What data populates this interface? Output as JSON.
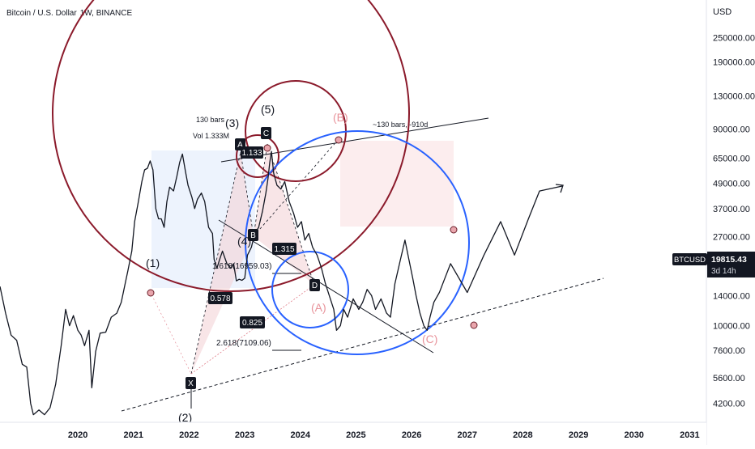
{
  "header": {
    "symbol_title": "Bitcoin / U.S. Dollar",
    "interval": "1W",
    "exchange": "BINANCE"
  },
  "price_axis": {
    "currency": "USD",
    "ticks": [
      "250000.00",
      "190000.00",
      "130000.00",
      "90000.00",
      "65000.00",
      "49000.00",
      "37000.00",
      "27000.00",
      "14000.00",
      "10000.00",
      "7600.00",
      "5600.00",
      "4200.00"
    ]
  },
  "price_tag": {
    "ticker": "BTCUSD",
    "price": "19815.43",
    "countdown": "3d 14h"
  },
  "colors": {
    "price_line": "#131722",
    "dark_red_circle": "#8b1a2b",
    "blue_circle": "#2962ff",
    "pink_label": "#e8939b",
    "tag_bg": "#131722"
  },
  "chart_data": {
    "type": "line",
    "title": "Bitcoin / U.S. Dollar, 1W, BINANCE",
    "x_ticks": [
      "2020",
      "2021",
      "2022",
      "2023",
      "2024",
      "2025",
      "2026",
      "2027",
      "2028",
      "2029",
      "2030",
      "2031"
    ],
    "y_scale": "log",
    "y_ticks": [
      250000,
      190000,
      130000,
      90000,
      65000,
      49000,
      37000,
      27000,
      14000,
      10000,
      7600,
      5600,
      4200
    ],
    "y_range": [
      3400,
      380000
    ],
    "x_range": [
      2018.6,
      2031.3
    ],
    "series": [
      {
        "points": [
          [
            2018.6,
            15500
          ],
          [
            2018.7,
            11500
          ],
          [
            2018.8,
            9000
          ],
          [
            2018.9,
            8500
          ],
          [
            2019.0,
            6500
          ],
          [
            2019.08,
            6300
          ],
          [
            2019.15,
            4200
          ],
          [
            2019.2,
            3700
          ],
          [
            2019.3,
            3900
          ],
          [
            2019.4,
            3700
          ],
          [
            2019.5,
            4000
          ],
          [
            2019.6,
            5200
          ],
          [
            2019.7,
            8000
          ],
          [
            2019.78,
            12000
          ],
          [
            2019.85,
            10000
          ],
          [
            2019.92,
            11200
          ],
          [
            2020.0,
            9500
          ],
          [
            2020.06,
            9000
          ],
          [
            2020.12,
            8000
          ],
          [
            2020.2,
            9500
          ],
          [
            2020.25,
            5000
          ],
          [
            2020.32,
            7500
          ],
          [
            2020.4,
            9200
          ],
          [
            2020.5,
            9300
          ],
          [
            2020.6,
            11000
          ],
          [
            2020.7,
            11500
          ],
          [
            2020.78,
            13000
          ],
          [
            2020.85,
            16000
          ],
          [
            2020.9,
            18500
          ],
          [
            2020.97,
            23000
          ],
          [
            2021.02,
            32000
          ],
          [
            2021.08,
            39000
          ],
          [
            2021.15,
            50000
          ],
          [
            2021.2,
            57000
          ],
          [
            2021.25,
            58000
          ],
          [
            2021.3,
            63000
          ],
          [
            2021.35,
            57000
          ],
          [
            2021.4,
            37000
          ],
          [
            2021.45,
            33000
          ],
          [
            2021.5,
            33000
          ],
          [
            2021.55,
            30000
          ],
          [
            2021.6,
            40000
          ],
          [
            2021.65,
            47000
          ],
          [
            2021.72,
            45000
          ],
          [
            2021.78,
            53000
          ],
          [
            2021.83,
            62000
          ],
          [
            2021.88,
            68000
          ],
          [
            2021.93,
            57000
          ],
          [
            2021.98,
            48000
          ],
          [
            2022.05,
            42000
          ],
          [
            2022.1,
            37000
          ],
          [
            2022.15,
            41000
          ],
          [
            2022.22,
            44000
          ],
          [
            2022.28,
            40000
          ],
          [
            2022.35,
            30000
          ],
          [
            2022.42,
            28000
          ],
          [
            2022.45,
            21000
          ],
          [
            2022.5,
            19000
          ],
          [
            2022.55,
            21000
          ],
          [
            2022.6,
            23000
          ],
          [
            2022.68,
            20000
          ],
          [
            2022.75,
            19000
          ],
          [
            2022.8,
            20000
          ],
          [
            2022.85,
            16500
          ],
          [
            2022.9,
            16800
          ],
          [
            2022.95,
            16600
          ],
          [
            2023.0,
            17000
          ],
          [
            2023.05,
            22000
          ],
          [
            2023.12,
            24000
          ],
          [
            2023.18,
            28000
          ],
          [
            2023.25,
            30000
          ],
          [
            2023.32,
            36000
          ],
          [
            2023.38,
            44000
          ],
          [
            2023.42,
            52000
          ],
          [
            2023.45,
            62000
          ],
          [
            2023.48,
            70000
          ],
          [
            2023.52,
            55000
          ],
          [
            2023.58,
            48000
          ],
          [
            2023.65,
            46000
          ],
          [
            2023.72,
            50000
          ],
          [
            2023.8,
            40000
          ],
          [
            2023.88,
            35000
          ],
          [
            2023.95,
            30000
          ],
          [
            2024.02,
            32000
          ],
          [
            2024.08,
            26000
          ],
          [
            2024.15,
            28000
          ],
          [
            2024.22,
            24000
          ],
          [
            2024.3,
            22000
          ],
          [
            2024.38,
            19000
          ],
          [
            2024.45,
            16000
          ],
          [
            2024.52,
            14000
          ],
          [
            2024.6,
            12000
          ],
          [
            2024.65,
            9500
          ],
          [
            2024.72,
            10000
          ],
          [
            2024.78,
            12000
          ],
          [
            2024.85,
            11000
          ],
          [
            2024.95,
            13500
          ],
          [
            2025.05,
            12000
          ],
          [
            2025.12,
            13000
          ],
          [
            2025.2,
            15000
          ],
          [
            2025.28,
            14000
          ],
          [
            2025.35,
            12000
          ],
          [
            2025.45,
            13500
          ],
          [
            2025.55,
            11500
          ],
          [
            2025.62,
            11000
          ],
          [
            2025.7,
            16000
          ],
          [
            2025.8,
            21000
          ],
          [
            2025.88,
            26000
          ],
          [
            2025.95,
            21000
          ],
          [
            2026.02,
            17000
          ],
          [
            2026.08,
            14000
          ],
          [
            2026.15,
            11500
          ],
          [
            2026.22,
            10000
          ],
          [
            2026.28,
            9500
          ],
          [
            2026.33,
            11000
          ],
          [
            2026.4,
            13000
          ],
          [
            2026.5,
            14500
          ],
          [
            2026.58,
            16500
          ],
          [
            2026.7,
            20000
          ],
          [
            2027.0,
            14500
          ],
          [
            2027.3,
            22000
          ],
          [
            2027.6,
            32000
          ],
          [
            2027.85,
            22000
          ],
          [
            2028.1,
            33000
          ],
          [
            2028.3,
            45000
          ]
        ]
      }
    ]
  },
  "annotations": {
    "wave_1": "(1)",
    "wave_2": "(2)",
    "wave_3": "(3)",
    "wave_4": "(4)",
    "wave_5": "(5)",
    "wave_A": "(A)",
    "wave_B": "(B)",
    "wave_C": "(C)",
    "pt_A": "A",
    "pt_B": "B",
    "pt_C": "C",
    "pt_D": "D",
    "pt_X": "X",
    "bars_note": "130 bars",
    "vol_note": "Vol 1.333M",
    "bars_projection": "~130 bars, -910d",
    "ratio_1133": "1.133",
    "ratio_1315": "1.315",
    "ratio_0578": "0.578",
    "ratio_0825": "0.825",
    "fib_1618": "1.618(16959.03)",
    "fib_2618": "2.618(7109.06)"
  }
}
